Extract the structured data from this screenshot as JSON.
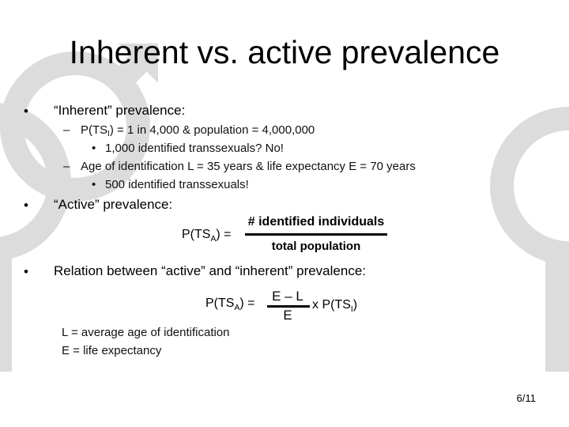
{
  "title": "Inherent vs. active prevalence",
  "bullet1": {
    "text": "“Inherent” prevalence:",
    "sub": [
      {
        "text": [
          "P(TS",
          "I",
          ") = 1 in 4,000 & population = 4,000,000"
        ],
        "sub": [
          "1,000 identified transsexuals? No!"
        ]
      },
      {
        "text": "Age of identification L = 35 years & life expectancy E = 70 years",
        "sub": [
          "500 identified transsexuals!"
        ]
      }
    ]
  },
  "bullet2": {
    "text": "“Active” prevalence:",
    "formula": {
      "lhs": [
        "P(TS",
        "A",
        ") ="
      ],
      "numerator": "# identified individuals",
      "denominator": "total population"
    }
  },
  "bullet3": {
    "text": "Relation between “active” and “inherent” prevalence:",
    "formula": {
      "lhs": [
        "P(TS",
        "A",
        ") ="
      ],
      "numerator": "E – L",
      "denominator": "E",
      "rhs": [
        "x P(TS",
        "I",
        ")"
      ]
    },
    "notes": [
      "L = average age of identification",
      "E = life expectancy"
    ]
  },
  "page": "6/11"
}
